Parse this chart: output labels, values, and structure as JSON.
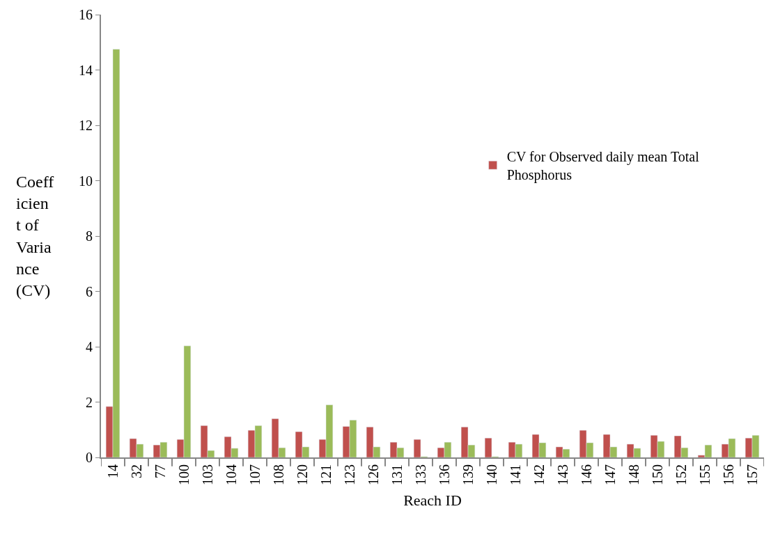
{
  "chart_data": {
    "type": "bar",
    "xlabel": "Reach ID",
    "ylabel": "Coefficient of Variance (CV)",
    "categories": [
      "14",
      "32",
      "77",
      "100",
      "103",
      "104",
      "107",
      "108",
      "120",
      "121",
      "123",
      "126",
      "131",
      "133",
      "136",
      "139",
      "140",
      "141",
      "142",
      "143",
      "146",
      "147",
      "148",
      "150",
      "152",
      "155",
      "156",
      "157"
    ],
    "series": [
      {
        "name": "CV for Observed daily mean Total Phosphorus",
        "color": "#c0504d",
        "values": [
          1.84,
          0.68,
          0.45,
          0.65,
          1.15,
          0.75,
          0.98,
          1.4,
          0.93,
          0.65,
          1.12,
          1.1,
          0.55,
          0.65,
          0.35,
          1.1,
          0.7,
          0.55,
          0.83,
          0.38,
          0.98,
          0.83,
          0.48,
          0.8,
          0.78,
          0.08,
          0.48,
          0.7
        ]
      },
      {
        "color": "#9bbb59",
        "values": [
          14.75,
          0.48,
          0.55,
          4.03,
          0.25,
          0.33,
          1.15,
          0.35,
          0.38,
          1.9,
          1.35,
          0.38,
          0.35,
          0.03,
          0.55,
          0.45,
          0.03,
          0.48,
          0.53,
          0.3,
          0.53,
          0.38,
          0.33,
          0.58,
          0.35,
          0.45,
          0.68,
          0.8
        ]
      }
    ],
    "ylim": [
      0,
      16
    ],
    "yticks": [
      0,
      2,
      4,
      6,
      8,
      10,
      12,
      14,
      16
    ],
    "legend": "right"
  }
}
